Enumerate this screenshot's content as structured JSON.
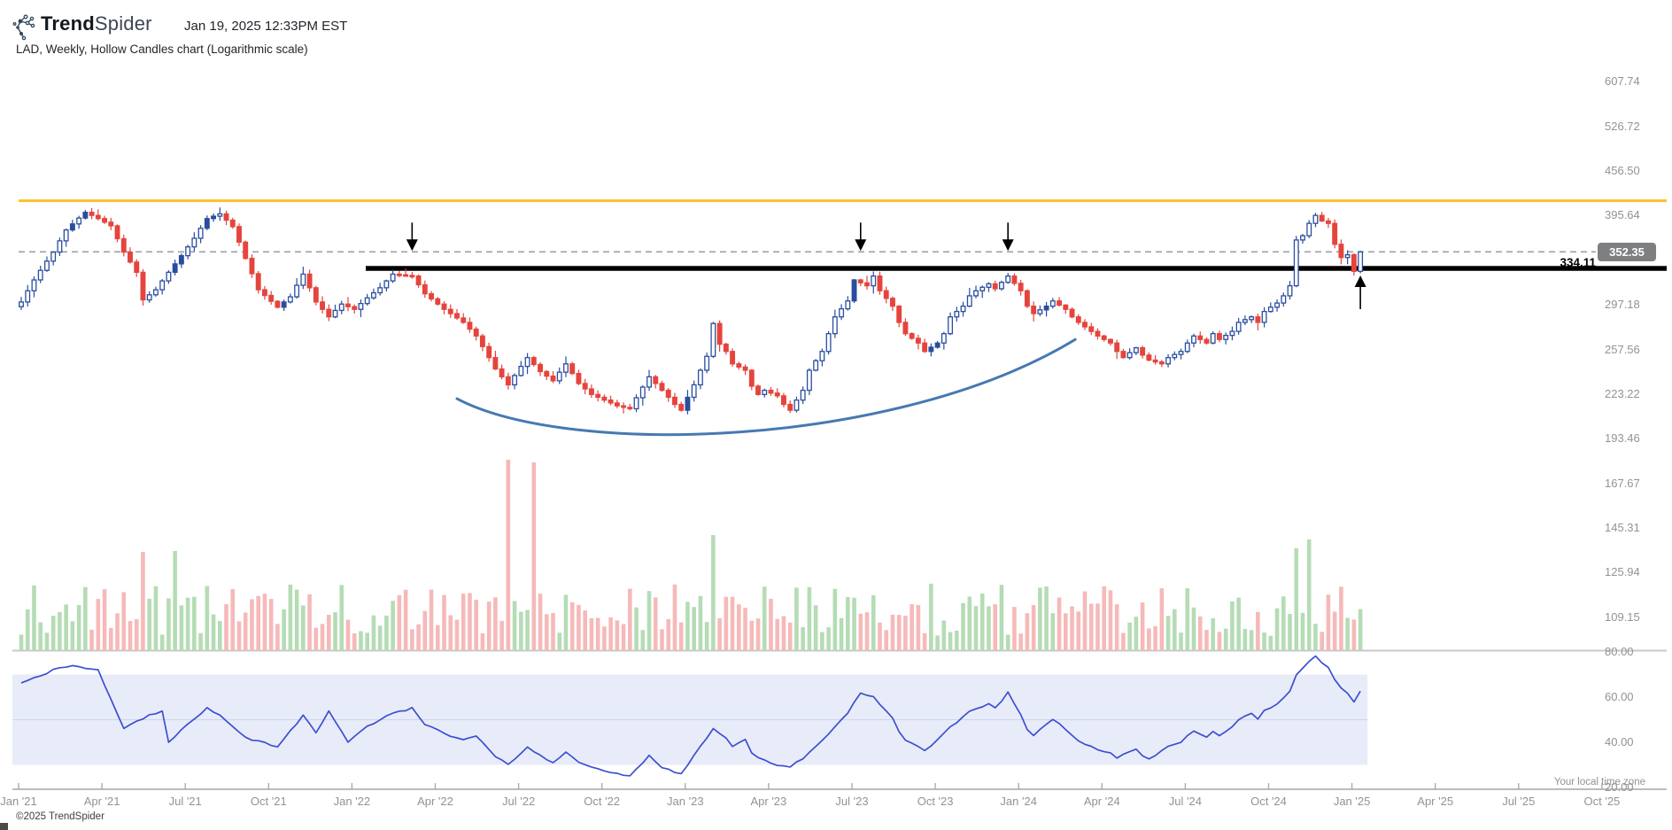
{
  "header": {
    "brand_bold": "Trend",
    "brand_light": "Spider",
    "timestamp": "Jan 19, 2025 12:33PM EST",
    "subtitle": "LAD, Weekly, Hollow Candles chart (Logarithmic scale)"
  },
  "footer": {
    "copyright": "©2025 TrendSpider",
    "timezone_note": "Your local time zone"
  },
  "colors": {
    "candle_up": "#2a4d9e",
    "candle_down": "#e5443d",
    "volume_up": "#b5dcb5",
    "volume_down": "#f6b9b9",
    "orange_line": "#fbc02d",
    "black_line": "#000000",
    "dashed_line": "#9aa0a6",
    "badge_bg": "#7d7f81",
    "rsi_line": "#3d4fd0",
    "rsi_band_fill": "#e8ecf9",
    "rsi_mid_line": "#ccd4ef",
    "arc": "#4679b2",
    "axis_text": "#8f9398",
    "pane_divider": "#c8c8c8"
  },
  "price_axis": {
    "tick_labels": [
      "607.74",
      "526.72",
      "456.50",
      "395.64",
      "297.18",
      "257.56",
      "223.22",
      "193.46",
      "167.67",
      "145.31",
      "125.94",
      "109.15"
    ],
    "tick_values": [
      607.74,
      526.72,
      456.5,
      395.64,
      297.18,
      257.56,
      223.22,
      193.46,
      167.67,
      145.31,
      125.94,
      109.15
    ],
    "current_price": "352.35",
    "level_label": "334.11"
  },
  "rsi_axis": {
    "tick_labels": [
      "80.00",
      "60.00",
      "40.00",
      "20.00"
    ],
    "tick_values": [
      80,
      60,
      40,
      20
    ]
  },
  "x_axis": {
    "tick_labels": [
      "Jan '21",
      "Apr '21",
      "Jul '21",
      "Oct '21",
      "Jan '22",
      "Apr '22",
      "Jul '22",
      "Oct '22",
      "Jan '23",
      "Apr '23",
      "Jul '23",
      "Oct '23",
      "Jan '24",
      "Apr '24",
      "Jul '24",
      "Oct '24",
      "Jan '25",
      "Apr '25",
      "Jul '25",
      "Oct '25"
    ]
  },
  "chart_data": {
    "type": "candlestick",
    "symbol": "LAD",
    "timeframe": "Weekly",
    "scale": "logarithmic",
    "weeks": 210,
    "start_label": "Jan '21",
    "end_label": "Jan '25",
    "levels": {
      "resistance_black_line": 334.11,
      "current_price_dashed_line": 352.35,
      "orange_alert_line": 415
    },
    "annotations": {
      "down_arrow_weeks": [
        61,
        131,
        154
      ],
      "up_arrow_week": 209,
      "cup_arc": {
        "start": [
          68,
          220
        ],
        "dip": [
          116.5,
          194
        ],
        "end": [
          164.5,
          266
        ]
      }
    },
    "close_anchors": [
      [
        0,
        300
      ],
      [
        2,
        322
      ],
      [
        5,
        352
      ],
      [
        7,
        378
      ],
      [
        10,
        400
      ],
      [
        12,
        392
      ],
      [
        14,
        383
      ],
      [
        16,
        352
      ],
      [
        18,
        330
      ],
      [
        19,
        302
      ],
      [
        21,
        312
      ],
      [
        23,
        330
      ],
      [
        25,
        348
      ],
      [
        27,
        368
      ],
      [
        29,
        392
      ],
      [
        31,
        398
      ],
      [
        33,
        382
      ],
      [
        35,
        345
      ],
      [
        37,
        312
      ],
      [
        40,
        295
      ],
      [
        42,
        305
      ],
      [
        44,
        328
      ],
      [
        46,
        300
      ],
      [
        48,
        286
      ],
      [
        50,
        298
      ],
      [
        52,
        293
      ],
      [
        54,
        304
      ],
      [
        56,
        314
      ],
      [
        58,
        328
      ],
      [
        61,
        326
      ],
      [
        63,
        308
      ],
      [
        66,
        293
      ],
      [
        69,
        281
      ],
      [
        71,
        269
      ],
      [
        74,
        242
      ],
      [
        76,
        230
      ],
      [
        79,
        251
      ],
      [
        81,
        240
      ],
      [
        83,
        233
      ],
      [
        85,
        246
      ],
      [
        87,
        231
      ],
      [
        89,
        223
      ],
      [
        91,
        219
      ],
      [
        93,
        215
      ],
      [
        95,
        213
      ],
      [
        98,
        236
      ],
      [
        100,
        226
      ],
      [
        102,
        216
      ],
      [
        103,
        212
      ],
      [
        105,
        230
      ],
      [
        107,
        252
      ],
      [
        108,
        280
      ],
      [
        109,
        262
      ],
      [
        110,
        256
      ],
      [
        111,
        246
      ],
      [
        113,
        241
      ],
      [
        114,
        229
      ],
      [
        115,
        223
      ],
      [
        116,
        226
      ],
      [
        118,
        222
      ],
      [
        119,
        216
      ],
      [
        120,
        212
      ],
      [
        122,
        226
      ],
      [
        123,
        241
      ],
      [
        125,
        256
      ],
      [
        126,
        271
      ],
      [
        127,
        286
      ],
      [
        129,
        301
      ],
      [
        130,
        322
      ],
      [
        132,
        316
      ],
      [
        133,
        326
      ],
      [
        134,
        311
      ],
      [
        136,
        296
      ],
      [
        137,
        281
      ],
      [
        138,
        271
      ],
      [
        140,
        263
      ],
      [
        141,
        256
      ],
      [
        143,
        263
      ],
      [
        144,
        271
      ],
      [
        145,
        286
      ],
      [
        147,
        296
      ],
      [
        148,
        306
      ],
      [
        149,
        311
      ],
      [
        151,
        318
      ],
      [
        152,
        313
      ],
      [
        154,
        326
      ],
      [
        156,
        311
      ],
      [
        157,
        296
      ],
      [
        158,
        289
      ],
      [
        160,
        296
      ],
      [
        161,
        301
      ],
      [
        163,
        293
      ],
      [
        164,
        286
      ],
      [
        165,
        281
      ],
      [
        167,
        273
      ],
      [
        168,
        269
      ],
      [
        170,
        263
      ],
      [
        171,
        256
      ],
      [
        172,
        251
      ],
      [
        174,
        259
      ],
      [
        175,
        253
      ],
      [
        176,
        249
      ],
      [
        178,
        246
      ],
      [
        179,
        251
      ],
      [
        181,
        256
      ],
      [
        182,
        263
      ],
      [
        183,
        269
      ],
      [
        185,
        263
      ],
      [
        186,
        271
      ],
      [
        187,
        266
      ],
      [
        189,
        273
      ],
      [
        190,
        281
      ],
      [
        192,
        286
      ],
      [
        193,
        281
      ],
      [
        194,
        291
      ],
      [
        196,
        299
      ],
      [
        197,
        306
      ],
      [
        198,
        316
      ],
      [
        199,
        366
      ],
      [
        200,
        371
      ],
      [
        201,
        386
      ],
      [
        202,
        396
      ],
      [
        203,
        389
      ],
      [
        204,
        386
      ],
      [
        205,
        361
      ],
      [
        206,
        346
      ],
      [
        207,
        349
      ],
      [
        208,
        331
      ],
      [
        209,
        352.35
      ]
    ],
    "rsi_band": [
      30,
      70
    ],
    "rsi_anchors": [
      [
        0,
        66
      ],
      [
        5,
        72
      ],
      [
        8,
        74
      ],
      [
        12,
        72
      ],
      [
        16,
        46
      ],
      [
        20,
        52
      ],
      [
        22,
        54
      ],
      [
        23,
        40
      ],
      [
        26,
        48
      ],
      [
        29,
        55
      ],
      [
        31,
        52
      ],
      [
        35,
        42
      ],
      [
        40,
        38
      ],
      [
        42,
        45
      ],
      [
        44,
        52
      ],
      [
        46,
        44
      ],
      [
        48,
        54
      ],
      [
        51,
        40
      ],
      [
        54,
        47
      ],
      [
        58,
        53
      ],
      [
        61,
        55
      ],
      [
        63,
        48
      ],
      [
        66,
        44
      ],
      [
        69,
        41
      ],
      [
        71,
        43
      ],
      [
        74,
        34
      ],
      [
        76,
        30
      ],
      [
        79,
        38
      ],
      [
        81,
        34
      ],
      [
        83,
        31
      ],
      [
        85,
        36
      ],
      [
        87,
        31
      ],
      [
        89,
        29
      ],
      [
        91,
        27
      ],
      [
        93,
        26
      ],
      [
        95,
        25
      ],
      [
        98,
        34
      ],
      [
        100,
        29
      ],
      [
        102,
        27
      ],
      [
        103,
        26
      ],
      [
        105,
        34
      ],
      [
        108,
        46
      ],
      [
        110,
        42
      ],
      [
        111,
        38
      ],
      [
        113,
        41
      ],
      [
        114,
        35
      ],
      [
        116,
        32
      ],
      [
        118,
        30
      ],
      [
        120,
        29
      ],
      [
        122,
        33
      ],
      [
        125,
        41
      ],
      [
        127,
        47
      ],
      [
        129,
        53
      ],
      [
        131,
        62
      ],
      [
        133,
        60
      ],
      [
        134,
        57
      ],
      [
        136,
        51
      ],
      [
        137,
        45
      ],
      [
        138,
        41
      ],
      [
        140,
        38
      ],
      [
        141,
        36
      ],
      [
        143,
        41
      ],
      [
        145,
        47
      ],
      [
        147,
        51
      ],
      [
        148,
        54
      ],
      [
        151,
        57
      ],
      [
        152,
        55
      ],
      [
        154,
        62
      ],
      [
        156,
        52
      ],
      [
        157,
        46
      ],
      [
        158,
        43
      ],
      [
        160,
        48
      ],
      [
        161,
        50
      ],
      [
        163,
        46
      ],
      [
        164,
        43
      ],
      [
        165,
        41
      ],
      [
        167,
        38
      ],
      [
        168,
        37
      ],
      [
        170,
        35
      ],
      [
        171,
        33
      ],
      [
        172,
        35
      ],
      [
        174,
        37
      ],
      [
        175,
        34
      ],
      [
        176,
        33
      ],
      [
        178,
        36
      ],
      [
        179,
        38
      ],
      [
        181,
        40
      ],
      [
        182,
        43
      ],
      [
        183,
        45
      ],
      [
        185,
        42
      ],
      [
        186,
        45
      ],
      [
        187,
        43
      ],
      [
        189,
        47
      ],
      [
        190,
        50
      ],
      [
        192,
        53
      ],
      [
        193,
        50
      ],
      [
        194,
        54
      ],
      [
        196,
        57
      ],
      [
        197,
        60
      ],
      [
        198,
        63
      ],
      [
        199,
        70
      ],
      [
        200,
        73
      ],
      [
        201,
        76
      ],
      [
        202,
        78
      ],
      [
        203,
        75
      ],
      [
        204,
        73
      ],
      [
        205,
        68
      ],
      [
        206,
        64
      ],
      [
        207,
        62
      ],
      [
        208,
        58
      ],
      [
        209,
        63
      ]
    ],
    "volume_spike_weeks": [
      [
        19,
        111
      ],
      [
        24,
        112
      ],
      [
        76,
        215
      ],
      [
        80,
        212
      ],
      [
        108,
        130
      ],
      [
        199,
        115
      ],
      [
        201,
        125
      ]
    ]
  }
}
